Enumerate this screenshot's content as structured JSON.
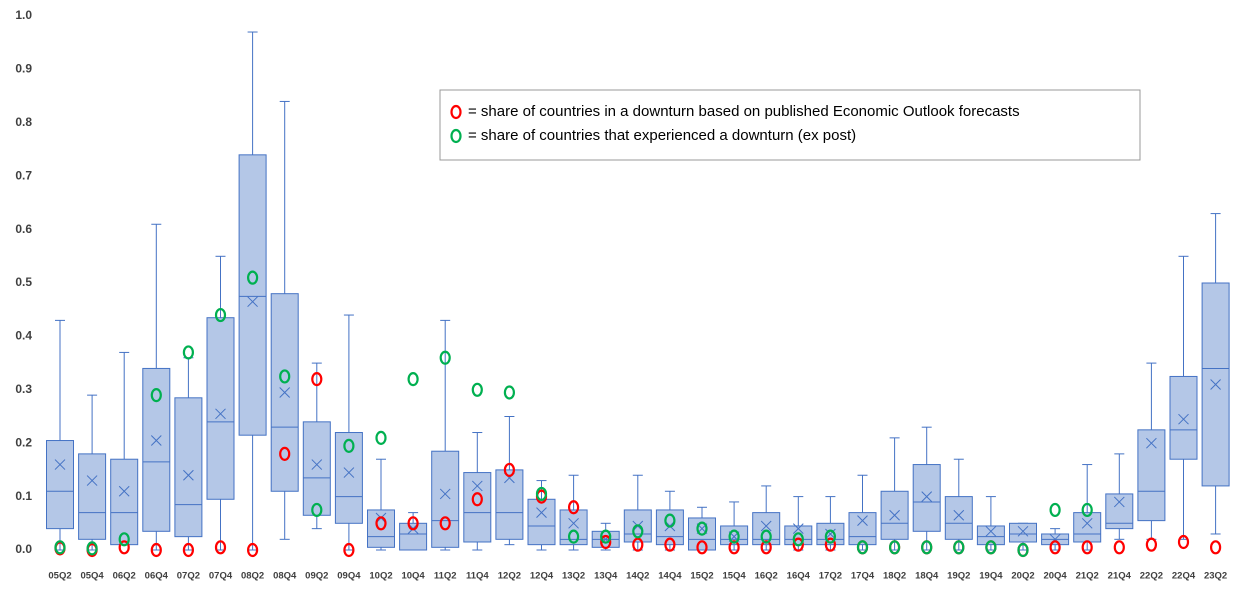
{
  "chart_data": {
    "type": "box",
    "categories": [
      "05Q2",
      "05Q4",
      "06Q2",
      "06Q4",
      "07Q2",
      "07Q4",
      "08Q2",
      "08Q4",
      "09Q2",
      "09Q4",
      "10Q2",
      "10Q4",
      "11Q2",
      "11Q4",
      "12Q2",
      "12Q4",
      "13Q2",
      "13Q4",
      "14Q2",
      "14Q4",
      "15Q2",
      "15Q4",
      "16Q2",
      "16Q4",
      "17Q2",
      "17Q4",
      "18Q2",
      "18Q4",
      "19Q2",
      "19Q4",
      "20Q2",
      "20Q4",
      "21Q2",
      "21Q4",
      "22Q2",
      "22Q4",
      "23Q2"
    ],
    "min": [
      0,
      0,
      0.01,
      0,
      0,
      0,
      0,
      0.02,
      0.04,
      0,
      0,
      0,
      0,
      0,
      0.01,
      0,
      0,
      0,
      0,
      0,
      0,
      0,
      0,
      0,
      0,
      0,
      0,
      0,
      0,
      0,
      0,
      0,
      0,
      0.02,
      0.02,
      0.02,
      0.03
    ],
    "q1": [
      0.04,
      0.02,
      0.01,
      0.035,
      0.025,
      0.095,
      0.215,
      0.11,
      0.065,
      0.05,
      0.005,
      0,
      0.005,
      0.015,
      0.02,
      0.01,
      0.01,
      0.005,
      0.015,
      0.01,
      0,
      0.01,
      0.01,
      0.01,
      0.01,
      0.01,
      0.02,
      0.035,
      0.02,
      0.01,
      0.015,
      0.01,
      0.015,
      0.04,
      0.055,
      0.17,
      0.12
    ],
    "median": [
      0.11,
      0.07,
      0.07,
      0.165,
      0.085,
      0.24,
      0.475,
      0.23,
      0.135,
      0.1,
      0.025,
      0.03,
      0.055,
      0.07,
      0.07,
      0.045,
      0.02,
      0.02,
      0.03,
      0.025,
      0.02,
      0.02,
      0.02,
      0.02,
      0.02,
      0.025,
      0.05,
      0.09,
      0.05,
      0.025,
      0.03,
      0.02,
      0.03,
      0.05,
      0.11,
      0.225,
      0.34
    ],
    "q3": [
      0.205,
      0.18,
      0.17,
      0.34,
      0.285,
      0.435,
      0.74,
      0.48,
      0.24,
      0.22,
      0.075,
      0.05,
      0.185,
      0.145,
      0.15,
      0.095,
      0.075,
      0.035,
      0.075,
      0.075,
      0.06,
      0.045,
      0.07,
      0.045,
      0.05,
      0.07,
      0.11,
      0.16,
      0.1,
      0.045,
      0.05,
      0.03,
      0.07,
      0.105,
      0.225,
      0.325,
      0.5
    ],
    "max": [
      0.43,
      0.29,
      0.37,
      0.61,
      0.36,
      0.55,
      0.97,
      0.84,
      0.35,
      0.44,
      0.17,
      0.07,
      0.43,
      0.22,
      0.25,
      0.13,
      0.14,
      0.05,
      0.14,
      0.11,
      0.08,
      0.09,
      0.12,
      0.1,
      0.1,
      0.14,
      0.21,
      0.23,
      0.17,
      0.1,
      0.05,
      0.04,
      0.16,
      0.18,
      0.35,
      0.55,
      0.63
    ],
    "mean": [
      0.16,
      0.13,
      0.11,
      0.205,
      0.14,
      0.255,
      0.465,
      0.295,
      0.16,
      0.145,
      0.06,
      0.04,
      0.105,
      0.12,
      0.135,
      0.07,
      0.05,
      0.02,
      0.045,
      0.045,
      0.04,
      0.025,
      0.045,
      0.04,
      0.03,
      0.055,
      0.065,
      0.1,
      0.065,
      0.035,
      0.035,
      0.02,
      0.05,
      0.09,
      0.2,
      0.245,
      0.31
    ],
    "box_color": "#b4c7e7",
    "line_color": "#4472c4",
    "series": [
      {
        "name": "= share of countries in a downturn based on published Economic Outlook forecasts",
        "color": "#ff0000",
        "values": [
          0.003,
          0,
          0.005,
          0,
          0,
          0.005,
          0,
          0.18,
          0.32,
          0,
          0.05,
          0.05,
          0.05,
          0.095,
          0.15,
          0.1,
          0.08,
          0.015,
          0.01,
          0.01,
          0.005,
          0.005,
          0.005,
          0.01,
          0.01,
          0.005,
          0.005,
          0.005,
          0.005,
          0.005,
          0,
          0.005,
          0.005,
          0.005,
          0.01,
          0.015,
          0.005
        ]
      },
      {
        "name": "= share of countries that experienced a downturn (ex post)",
        "color": "#00b050",
        "values": [
          0.005,
          0.003,
          0.02,
          0.29,
          0.37,
          0.44,
          0.51,
          0.325,
          0.075,
          0.195,
          0.21,
          0.32,
          0.36,
          0.3,
          0.295,
          0.105,
          0.025,
          0.025,
          0.035,
          0.055,
          0.04,
          0.025,
          0.025,
          0.02,
          0.025,
          0.005,
          0.005,
          0.005,
          0.005,
          0.005,
          0,
          0.075,
          0.075,
          null,
          null,
          null,
          null
        ]
      }
    ],
    "ylim": [
      0,
      1.0
    ],
    "yticks": [
      {
        "value": 0,
        "label": "0.0"
      },
      {
        "value": 0.1,
        "label": "0.1"
      },
      {
        "value": 0.2,
        "label": "0.2"
      },
      {
        "value": 0.3,
        "label": "0.3"
      },
      {
        "value": 0.4,
        "label": "0.4"
      },
      {
        "value": 0.5,
        "label": "0.5"
      },
      {
        "value": 0.6,
        "label": "0.6"
      },
      {
        "value": 0.7,
        "label": "0.7"
      },
      {
        "value": 0.8,
        "label": "0.8"
      },
      {
        "value": 0.9,
        "label": "0.9"
      },
      {
        "value": 1.0,
        "label": "1.0"
      }
    ]
  }
}
